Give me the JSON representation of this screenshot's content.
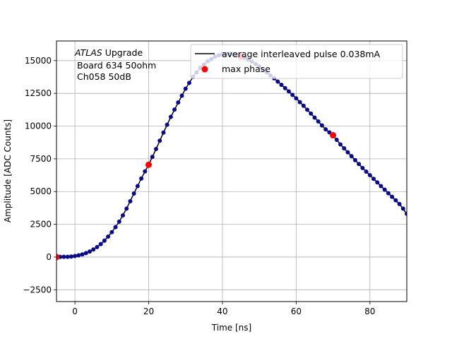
{
  "chart_data": {
    "type": "scatter",
    "xlabel": "Time [ns]",
    "ylabel": "Amplitude [ADC Counts]",
    "xlim": [
      -5,
      90
    ],
    "ylim": [
      -3400,
      16500
    ],
    "x_ticks": [
      0,
      20,
      40,
      60,
      80
    ],
    "y_ticks": [
      -2500,
      0,
      2500,
      5000,
      7500,
      10000,
      12500,
      15000
    ],
    "grid": true,
    "legend_position": "top-right",
    "annotation": {
      "italic_prefix": "ATLAS",
      "line1_rest": " Upgrade",
      "line2": "Board 634 50ohm",
      "line3": "Ch058 50dB"
    },
    "series": [
      {
        "name": "average interleaved pulse 0.038mA",
        "style": "line",
        "color": "#000000",
        "x": [
          -5,
          -2,
          0,
          2,
          4,
          6,
          8,
          10,
          12,
          14,
          16,
          18,
          20,
          22,
          24,
          26,
          28,
          30,
          32,
          34,
          36,
          38,
          40,
          42,
          44,
          46,
          48,
          50,
          52,
          54,
          56,
          58,
          60,
          62,
          64,
          66,
          68,
          70,
          72,
          74,
          76,
          78,
          80,
          82,
          84,
          86,
          88,
          90
        ],
        "y": [
          0,
          20,
          80,
          200,
          420,
          760,
          1250,
          1900,
          2700,
          3700,
          4850,
          6000,
          7050,
          8250,
          9500,
          10700,
          11800,
          12850,
          13750,
          14450,
          14950,
          15300,
          15480,
          15500,
          15420,
          15220,
          14920,
          14550,
          14100,
          13650,
          13150,
          12650,
          12120,
          11550,
          10950,
          10350,
          9750,
          9300,
          8600,
          8000,
          7400,
          6800,
          6250,
          5700,
          5150,
          4600,
          4050,
          3300
        ]
      },
      {
        "name": "",
        "style": "dots",
        "color": "#0a0a8c",
        "x": [
          -5,
          -4,
          -3,
          -2,
          -1,
          0,
          1,
          2,
          3,
          4,
          5,
          6,
          7,
          8,
          9,
          10,
          11,
          12,
          13,
          14,
          15,
          16,
          17,
          18,
          19,
          20,
          21,
          22,
          23,
          24,
          25,
          26,
          27,
          28,
          29,
          30,
          31,
          32,
          33,
          34,
          35,
          36,
          37,
          38,
          39,
          40,
          41,
          42,
          43,
          44,
          45,
          46,
          47,
          48,
          49,
          50,
          51,
          52,
          53,
          54,
          55,
          56,
          57,
          58,
          59,
          60,
          61,
          62,
          63,
          64,
          65,
          66,
          67,
          68,
          69,
          70,
          71,
          72,
          73,
          74,
          75,
          76,
          77,
          78,
          79,
          80,
          81,
          82,
          83,
          84,
          85,
          86,
          87,
          88,
          89,
          90
        ],
        "y": [
          0,
          10,
          15,
          20,
          40,
          80,
          130,
          200,
          300,
          420,
          580,
          760,
          990,
          1250,
          1560,
          1900,
          2280,
          2700,
          3180,
          3700,
          4260,
          4850,
          5420,
          6000,
          6540,
          7050,
          7650,
          8250,
          8880,
          9500,
          10100,
          10700,
          11260,
          11800,
          12320,
          12850,
          13300,
          13750,
          14100,
          14450,
          14700,
          14950,
          15120,
          15300,
          15400,
          15480,
          15500,
          15500,
          15460,
          15420,
          15320,
          15220,
          15070,
          14920,
          14740,
          14550,
          14320,
          14100,
          13870,
          13650,
          13400,
          13150,
          12900,
          12650,
          12380,
          12120,
          11830,
          11550,
          11250,
          10950,
          10650,
          10350,
          10050,
          9750,
          9520,
          9300,
          8950,
          8600,
          8300,
          8000,
          7700,
          7400,
          7100,
          6800,
          6520,
          6250,
          5970,
          5700,
          5420,
          5150,
          4870,
          4600,
          4330,
          4050,
          3700,
          3300
        ]
      },
      {
        "name": "max phase",
        "style": "markers",
        "color": "#ff0000",
        "x": [
          -5,
          20,
          45,
          70
        ],
        "y": [
          0,
          7050,
          15320,
          9300
        ]
      }
    ]
  }
}
